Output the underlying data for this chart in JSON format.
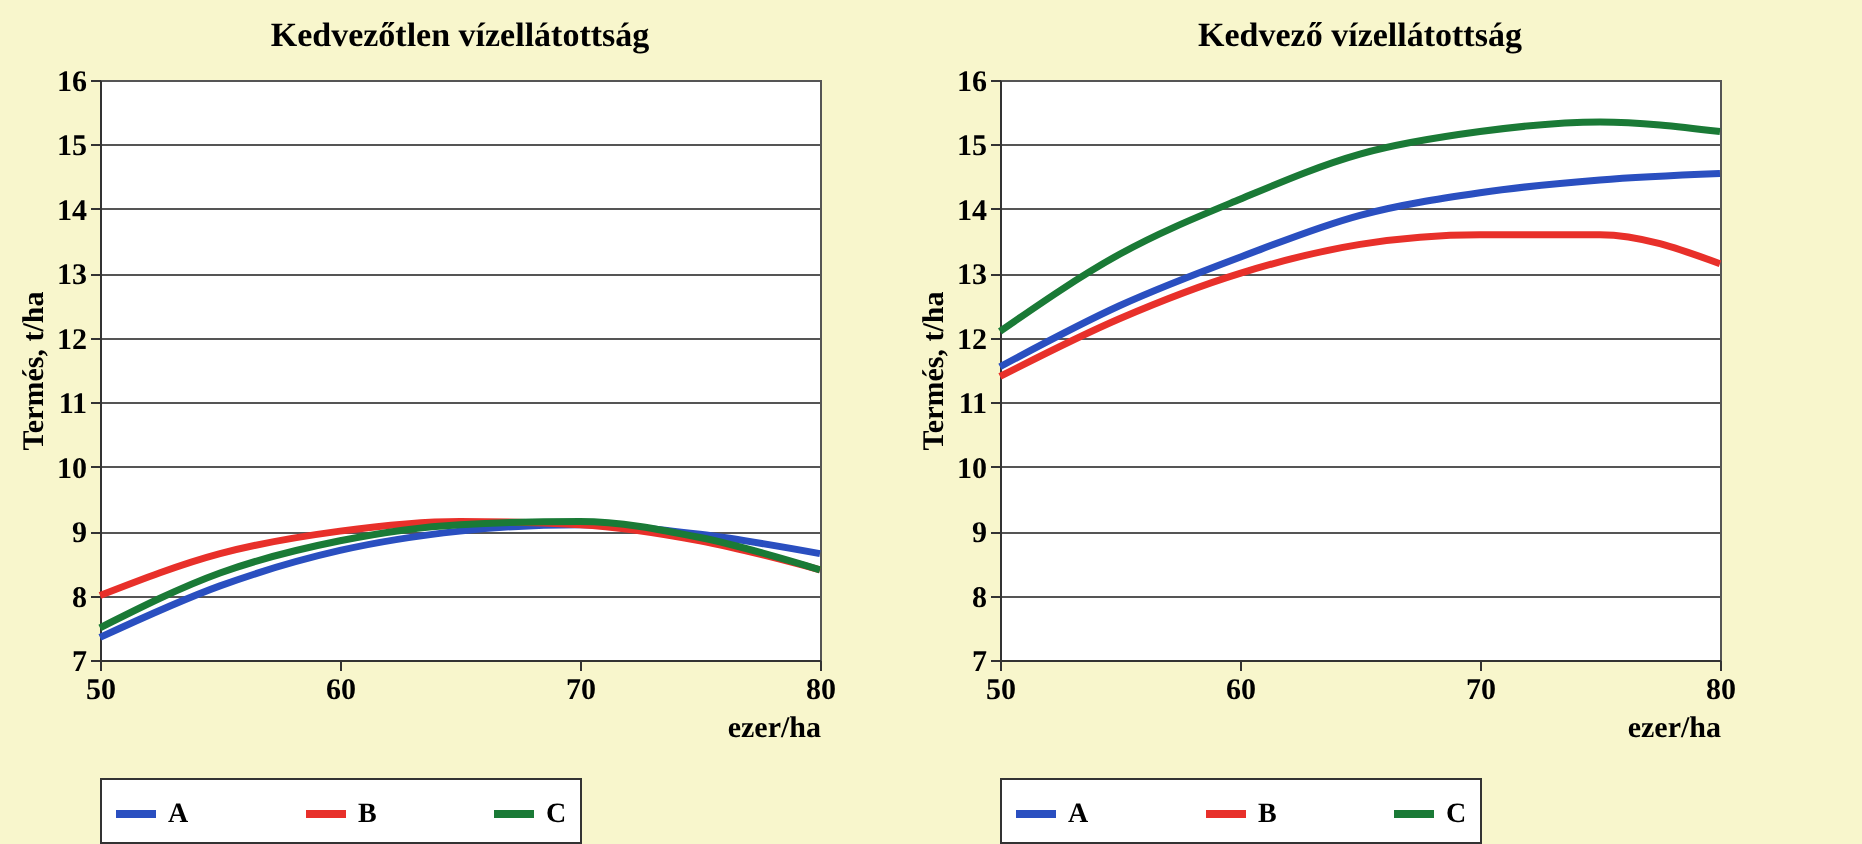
{
  "chart_data": [
    {
      "type": "line",
      "title": "Kedvezőtlen vízellátottság",
      "xlabel": "ezer/ha",
      "ylabel": "Termés, t/ha",
      "x": [
        50,
        55,
        60,
        65,
        70,
        75,
        80
      ],
      "xlim": [
        50,
        80
      ],
      "xticks": [
        50,
        60,
        70,
        80
      ],
      "ylim": [
        7,
        16
      ],
      "yticks": [
        7,
        8,
        9,
        10,
        11,
        12,
        13,
        14,
        15,
        16
      ],
      "grid": "y",
      "legend": "bottom",
      "series": [
        {
          "name": "A",
          "color": "#2a4fc0",
          "values": [
            7.35,
            8.15,
            8.7,
            9.0,
            9.1,
            8.95,
            8.65
          ]
        },
        {
          "name": "B",
          "color": "#e8302a",
          "values": [
            8.0,
            8.65,
            9.0,
            9.15,
            9.1,
            8.85,
            8.4
          ]
        },
        {
          "name": "C",
          "color": "#1a7a36",
          "values": [
            7.5,
            8.35,
            8.85,
            9.1,
            9.15,
            8.9,
            8.4
          ]
        }
      ]
    },
    {
      "type": "line",
      "title": "Kedvező vízellátottság",
      "xlabel": "ezer/ha",
      "ylabel": "Termés, t/ha",
      "x": [
        50,
        55,
        60,
        65,
        70,
        75,
        80
      ],
      "xlim": [
        50,
        80
      ],
      "xticks": [
        50,
        60,
        70,
        80
      ],
      "ylim": [
        7,
        16
      ],
      "yticks": [
        7,
        8,
        9,
        10,
        11,
        12,
        13,
        14,
        15,
        16
      ],
      "grid": "y",
      "legend": "bottom",
      "series": [
        {
          "name": "A",
          "color": "#2a4fc0",
          "values": [
            11.55,
            12.5,
            13.25,
            13.9,
            14.25,
            14.45,
            14.55
          ]
        },
        {
          "name": "B",
          "color": "#e8302a",
          "values": [
            11.4,
            12.3,
            13.0,
            13.45,
            13.6,
            13.6,
            13.15
          ]
        },
        {
          "name": "C",
          "color": "#1a7a36",
          "values": [
            12.1,
            13.3,
            14.15,
            14.85,
            15.2,
            15.35,
            15.2
          ]
        }
      ]
    }
  ]
}
